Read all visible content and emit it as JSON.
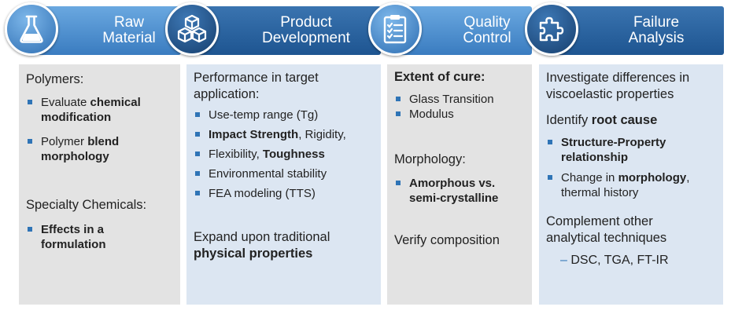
{
  "stages": [
    {
      "title_line1": "Raw",
      "title_line2": "Material",
      "icon": "flask-icon",
      "groups": [
        {
          "heading": "Polymers:",
          "bullets": [
            {
              "pre": "Evaluate ",
              "bold": "chemical",
              "line2": "modification",
              "line2_bold": true
            },
            {
              "pre": "Polymer ",
              "bold": "blend",
              "line2": "morphology",
              "line2_bold": true
            }
          ]
        },
        {
          "heading": "Specialty Chemicals:",
          "bullets": [
            {
              "pre": "",
              "bold": "Effects in a",
              "line2": "formulation",
              "line2_bold": true
            }
          ]
        }
      ]
    },
    {
      "title_line1": "Product",
      "title_line2": "Development",
      "icon": "cubes-icon",
      "heading_line1": "Performance in target",
      "heading_line2": "application:",
      "bullets": [
        {
          "text": "Use-temp range (Tg)"
        },
        {
          "bold1": "Impact Strength",
          "mid": ", Rigidity,"
        },
        {
          "pre": "Flexibility, ",
          "bold": "Toughness"
        },
        {
          "text": "Environmental stability"
        },
        {
          "text": "FEA modeling (TTS)"
        }
      ],
      "footer_line1": "Expand upon traditional",
      "footer_line2": "physical properties"
    },
    {
      "title_line1": "Quality",
      "title_line2": "Control",
      "icon": "clipboard-checklist-icon",
      "heading": "Extent of cure:",
      "bullets1": [
        "Glass Transition",
        "Modulus"
      ],
      "heading2": "Morphology:",
      "bullet2_line1": "Amorphous vs.",
      "bullet2_line2": "semi-crystalline",
      "footer": "Verify composition"
    },
    {
      "title_line1": "Failure",
      "title_line2": "Analysis",
      "icon": "puzzle-piece-icon",
      "intro_line1": "Investigate differences in",
      "intro_line2": "viscoelastic properties",
      "identify_pre": "Identify ",
      "identify_bold": "root cause",
      "bullet1_line1": "Structure-Property",
      "bullet1_line2": "relationship",
      "bullet2_pre": "Change in ",
      "bullet2_bold": "morphology",
      "bullet2_post": ",",
      "bullet2_line2": "thermal history",
      "complement_line1": "Complement other",
      "complement_line2": "analytical techniques",
      "dash_item": "DSC, TGA, FT-IR"
    }
  ],
  "colors": {
    "header_gradient_top": "#5f9fd9",
    "header_gradient_bottom": "#2f6fb3",
    "header_dark": "#1f5a96",
    "panel_gray": "#e3e3e3",
    "panel_blue": "#dce6f2",
    "bullet": "#2f74b6"
  }
}
